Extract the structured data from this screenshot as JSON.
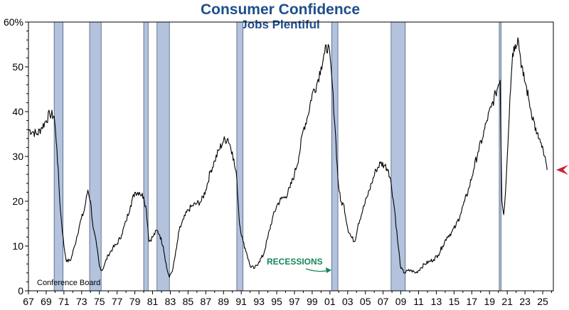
{
  "chart_data": {
    "type": "line",
    "title": "Consumer Confidence",
    "subtitle": "Jobs Plentiful",
    "source": "Conference Board",
    "annotation": "RECESSIONS",
    "ylim": [
      0,
      60
    ],
    "y_ticks": [
      0,
      10,
      20,
      30,
      40,
      50,
      60
    ],
    "y_tick_labels": [
      "0",
      "10",
      "20",
      "30",
      "40",
      "50",
      "60%"
    ],
    "xlim": [
      1967,
      2026.2
    ],
    "x_tick_labels": [
      "67",
      "69",
      "71",
      "73",
      "75",
      "77",
      "79",
      "81",
      "83",
      "85",
      "87",
      "89",
      "91",
      "93",
      "95",
      "97",
      "99",
      "01",
      "03",
      "05",
      "07",
      "09",
      "11",
      "13",
      "15",
      "17",
      "19",
      "21",
      "23",
      "25"
    ],
    "recessions": [
      [
        1969.9,
        1970.9
      ],
      [
        1973.9,
        1975.2
      ],
      [
        1980.0,
        1980.5
      ],
      [
        1981.5,
        1982.9
      ],
      [
        1990.5,
        1991.2
      ],
      [
        2001.2,
        2001.9
      ],
      [
        2007.9,
        2009.5
      ],
      [
        2020.1,
        2020.3
      ]
    ],
    "series": [
      {
        "name": "Jobs Plentiful",
        "x": [
          1967.0,
          1967.5,
          1968.0,
          1968.5,
          1969.0,
          1969.4,
          1969.9,
          1970.2,
          1970.6,
          1971.0,
          1971.3,
          1971.8,
          1972.2,
          1972.8,
          1973.3,
          1973.7,
          1974.0,
          1974.3,
          1974.7,
          1975.0,
          1975.3,
          1975.6,
          1976.0,
          1976.5,
          1977.0,
          1977.5,
          1978.0,
          1978.5,
          1979.0,
          1979.5,
          1980.0,
          1980.3,
          1980.6,
          1981.0,
          1981.5,
          1981.8,
          1982.2,
          1982.6,
          1982.9,
          1983.3,
          1983.7,
          1984.0,
          1984.5,
          1985.0,
          1985.5,
          1986.0,
          1986.5,
          1987.0,
          1987.5,
          1988.0,
          1988.5,
          1989.0,
          1989.5,
          1990.0,
          1990.5,
          1990.8,
          1991.2,
          1991.6,
          1992.0,
          1992.5,
          1993.0,
          1993.5,
          1994.0,
          1994.5,
          1995.0,
          1995.5,
          1996.0,
          1996.5,
          1997.0,
          1997.5,
          1998.0,
          1998.5,
          1999.0,
          1999.5,
          2000.0,
          2000.4,
          2000.8,
          2001.2,
          2001.6,
          2001.9,
          2002.2,
          2002.6,
          2003.0,
          2003.4,
          2003.8,
          2004.2,
          2004.7,
          2005.2,
          2005.7,
          2006.2,
          2006.7,
          2007.2,
          2007.6,
          2007.9,
          2008.3,
          2008.7,
          2009.0,
          2009.4,
          2009.8,
          2010.2,
          2010.7,
          2011.2,
          2011.7,
          2012.2,
          2012.7,
          2013.2,
          2013.7,
          2014.2,
          2014.7,
          2015.2,
          2015.7,
          2016.2,
          2016.7,
          2017.2,
          2017.7,
          2018.2,
          2018.7,
          2019.2,
          2019.7,
          2020.0,
          2020.2,
          2020.4,
          2020.6,
          2020.8,
          2021.0,
          2021.3,
          2021.6,
          2021.9,
          2022.2,
          2022.5,
          2022.8,
          2023.1,
          2023.4,
          2023.7,
          2024.0,
          2024.3,
          2024.6,
          2024.9,
          2025.2,
          2025.5
        ],
        "values": [
          36,
          35.5,
          35,
          36.5,
          38,
          39.5,
          39,
          32,
          18,
          10,
          6.5,
          7,
          10,
          15,
          18,
          22.5,
          20,
          14,
          10,
          5.5,
          4.5,
          6,
          8,
          9.5,
          10.5,
          12.5,
          15.5,
          19,
          22,
          22,
          21,
          18,
          11,
          12,
          13.5,
          12.5,
          10,
          5,
          3,
          5,
          9.5,
          13.5,
          16,
          18,
          19,
          19.5,
          20,
          22.5,
          26.5,
          29,
          31.5,
          33.5,
          34,
          31,
          25,
          15,
          11,
          8.5,
          5.5,
          5,
          6.5,
          8,
          12,
          16,
          19,
          20.5,
          21,
          23,
          26,
          30,
          36,
          39,
          44,
          46,
          50,
          53,
          55,
          48,
          36,
          25,
          20,
          19,
          14,
          12,
          11,
          15,
          18,
          21,
          24,
          27,
          28.5,
          28,
          27,
          24,
          18,
          10,
          5,
          4,
          4.5,
          4.5,
          4,
          5,
          6,
          6.5,
          7,
          8,
          10,
          12,
          13,
          14.5,
          17,
          20,
          23,
          27,
          31,
          34,
          38,
          41,
          44,
          46,
          47,
          20,
          17,
          22,
          30,
          43,
          53,
          55,
          56.5,
          52,
          48,
          46,
          43,
          40,
          38,
          35,
          34,
          32,
          30,
          27
        ]
      }
    ]
  }
}
